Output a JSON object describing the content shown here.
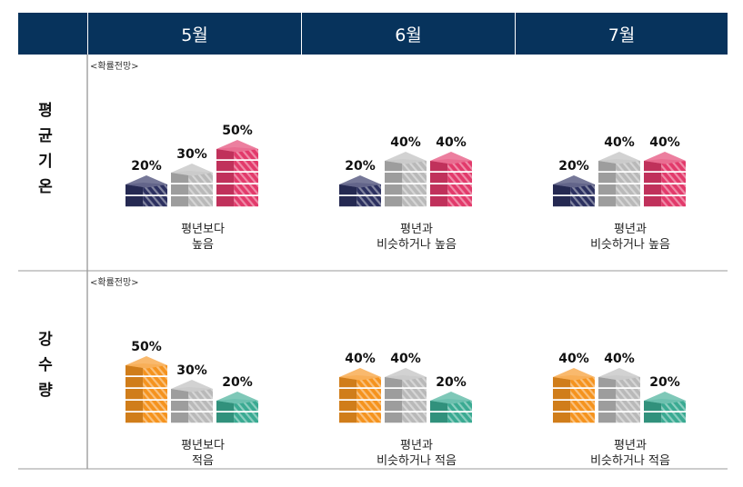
{
  "header": {
    "blank": "",
    "months": [
      "5월",
      "6월",
      "7월"
    ]
  },
  "note": "<확률전망>",
  "colors": {
    "header_bg": "#07335c",
    "below_temp": "#2c3060",
    "normal": "#b9b9b9",
    "above_temp": "#e23a6b",
    "below_precip": "#f5931e",
    "above_precip": "#3aaa92"
  },
  "chart_data": [
    {
      "type": "bar",
      "row": "평균기온",
      "row_label": [
        "평",
        "균",
        "기",
        "온"
      ],
      "categories": [
        "5월",
        "6월",
        "7월"
      ],
      "series": [
        {
          "name": "",
          "values": [
            20,
            20,
            20
          ]
        },
        {
          "name": "",
          "values": [
            30,
            40,
            40
          ]
        },
        {
          "name": "",
          "values": [
            50,
            40,
            40
          ]
        }
      ],
      "value_labels": [
        [
          "20%",
          "30%",
          "50%"
        ],
        [
          "20%",
          "40%",
          "40%"
        ],
        [
          "20%",
          "40%",
          "40%"
        ]
      ],
      "captions": [
        [
          "평년보다",
          "높음"
        ],
        [
          "평년과",
          "비슷하거나 높음"
        ],
        [
          "평년과",
          "비슷하거나 높음"
        ]
      ]
    },
    {
      "type": "bar",
      "row": "강수량",
      "row_label": [
        "강",
        "수",
        "량"
      ],
      "categories": [
        "5월",
        "6월",
        "7월"
      ],
      "series": [
        {
          "name": "",
          "values": [
            50,
            40,
            40
          ]
        },
        {
          "name": "",
          "values": [
            30,
            40,
            40
          ]
        },
        {
          "name": "",
          "values": [
            20,
            20,
            20
          ]
        }
      ],
      "value_labels": [
        [
          "50%",
          "30%",
          "20%"
        ],
        [
          "40%",
          "40%",
          "20%"
        ],
        [
          "40%",
          "40%",
          "20%"
        ]
      ],
      "captions": [
        [
          "평년보다",
          "적음"
        ],
        [
          "평년과",
          "비슷하거나 적음"
        ],
        [
          "평년과",
          "비슷하거나 적음"
        ]
      ]
    }
  ]
}
